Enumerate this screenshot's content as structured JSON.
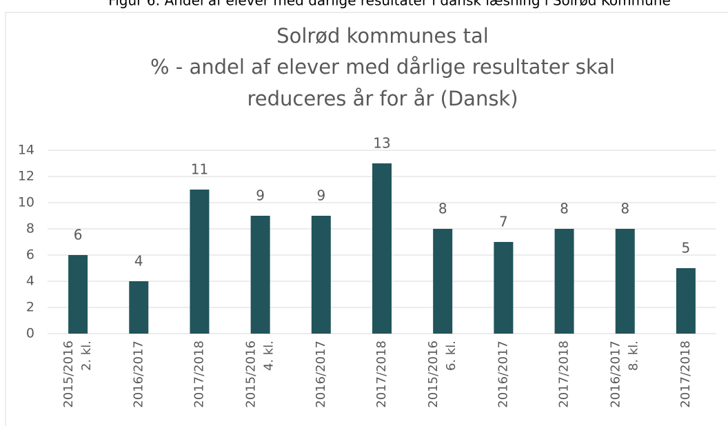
{
  "chart_data": {
    "type": "bar",
    "caption": "Figur 6: Andel af elever med dårlige resultater i dansk læsning i Solrød Kommune",
    "title": [
      "Solrød kommunes tal",
      "% - andel af elever med dårlige resultater skal",
      "reduceres år for år (Dansk)"
    ],
    "categories": [
      "2015/2016",
      "2016/2017",
      "2017/2018",
      "2015/2016",
      "2016/2017",
      "2017/2018",
      "2015/2016",
      "2016/2017",
      "2017/2018",
      "2016/2017",
      "2017/2018"
    ],
    "category_groups": [
      "2. kl.",
      null,
      null,
      "4. kl.",
      null,
      null,
      "6. kl.",
      null,
      null,
      "8. kl.",
      null
    ],
    "values": [
      6,
      4,
      11,
      9,
      9,
      13,
      8,
      7,
      8,
      8,
      5
    ],
    "color": "#21545b",
    "ylim": [
      0,
      14
    ],
    "yticks": [
      0,
      2,
      4,
      6,
      8,
      10,
      12,
      14
    ],
    "grid": true
  }
}
